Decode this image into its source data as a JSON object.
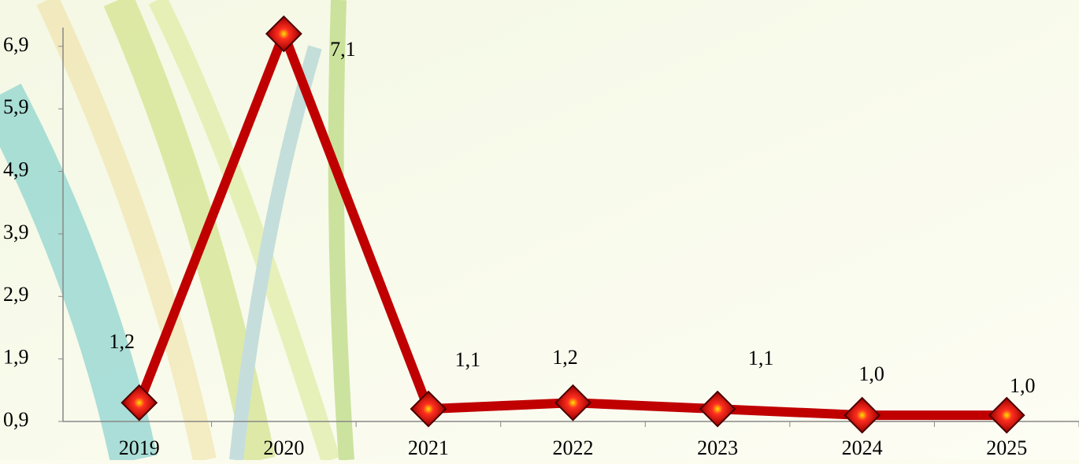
{
  "chart_data": {
    "type": "line",
    "categories": [
      "2019",
      "2020",
      "2021",
      "2022",
      "2023",
      "2024",
      "2025"
    ],
    "series": [
      {
        "color": "#c00000",
        "values": [
          1.2,
          7.1,
          1.1,
          1.2,
          1.1,
          1.0,
          1.0
        ],
        "value_labels": [
          "1,2",
          "7,1",
          "1,1",
          "1,2",
          "1,1",
          "1,0",
          "1,0"
        ]
      }
    ],
    "ylim": [
      0.9,
      7.2
    ],
    "yticks": [
      {
        "value": 0.9,
        "label": "0,9"
      },
      {
        "value": 1.9,
        "label": "1,9"
      },
      {
        "value": 2.9,
        "label": "2,9"
      },
      {
        "value": 3.9,
        "label": "3,9"
      },
      {
        "value": 4.9,
        "label": "4,9"
      },
      {
        "value": 5.9,
        "label": "5,9"
      },
      {
        "value": 6.9,
        "label": "6,9"
      }
    ]
  }
}
